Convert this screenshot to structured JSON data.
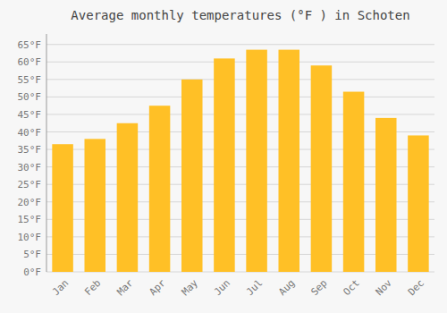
{
  "chart_data": {
    "type": "bar",
    "title": "Average monthly temperatures (°F ) in Schoten",
    "categories": [
      "Jan",
      "Feb",
      "Mar",
      "Apr",
      "May",
      "Jun",
      "Jul",
      "Aug",
      "Sep",
      "Oct",
      "Nov",
      "Dec"
    ],
    "values": [
      36.5,
      38.0,
      42.5,
      47.5,
      55.0,
      61.0,
      63.5,
      63.5,
      59.0,
      51.5,
      44.0,
      39.0
    ],
    "color": "#FFC026",
    "ylim": [
      0,
      68
    ],
    "yticks": [
      {
        "value": 0,
        "label": "0°F"
      },
      {
        "value": 5,
        "label": "5°F"
      },
      {
        "value": 10,
        "label": "10°F"
      },
      {
        "value": 15,
        "label": "15°F"
      },
      {
        "value": 20,
        "label": "20°F"
      },
      {
        "value": 25,
        "label": "25°F"
      },
      {
        "value": 30,
        "label": "30°F"
      },
      {
        "value": 35,
        "label": "35°F"
      },
      {
        "value": 40,
        "label": "40°F"
      },
      {
        "value": 45,
        "label": "45°F"
      },
      {
        "value": 50,
        "label": "50°F"
      },
      {
        "value": 55,
        "label": "55°F"
      },
      {
        "value": 60,
        "label": "60°F"
      },
      {
        "value": 65,
        "label": "65°F"
      }
    ],
    "grid": true
  }
}
